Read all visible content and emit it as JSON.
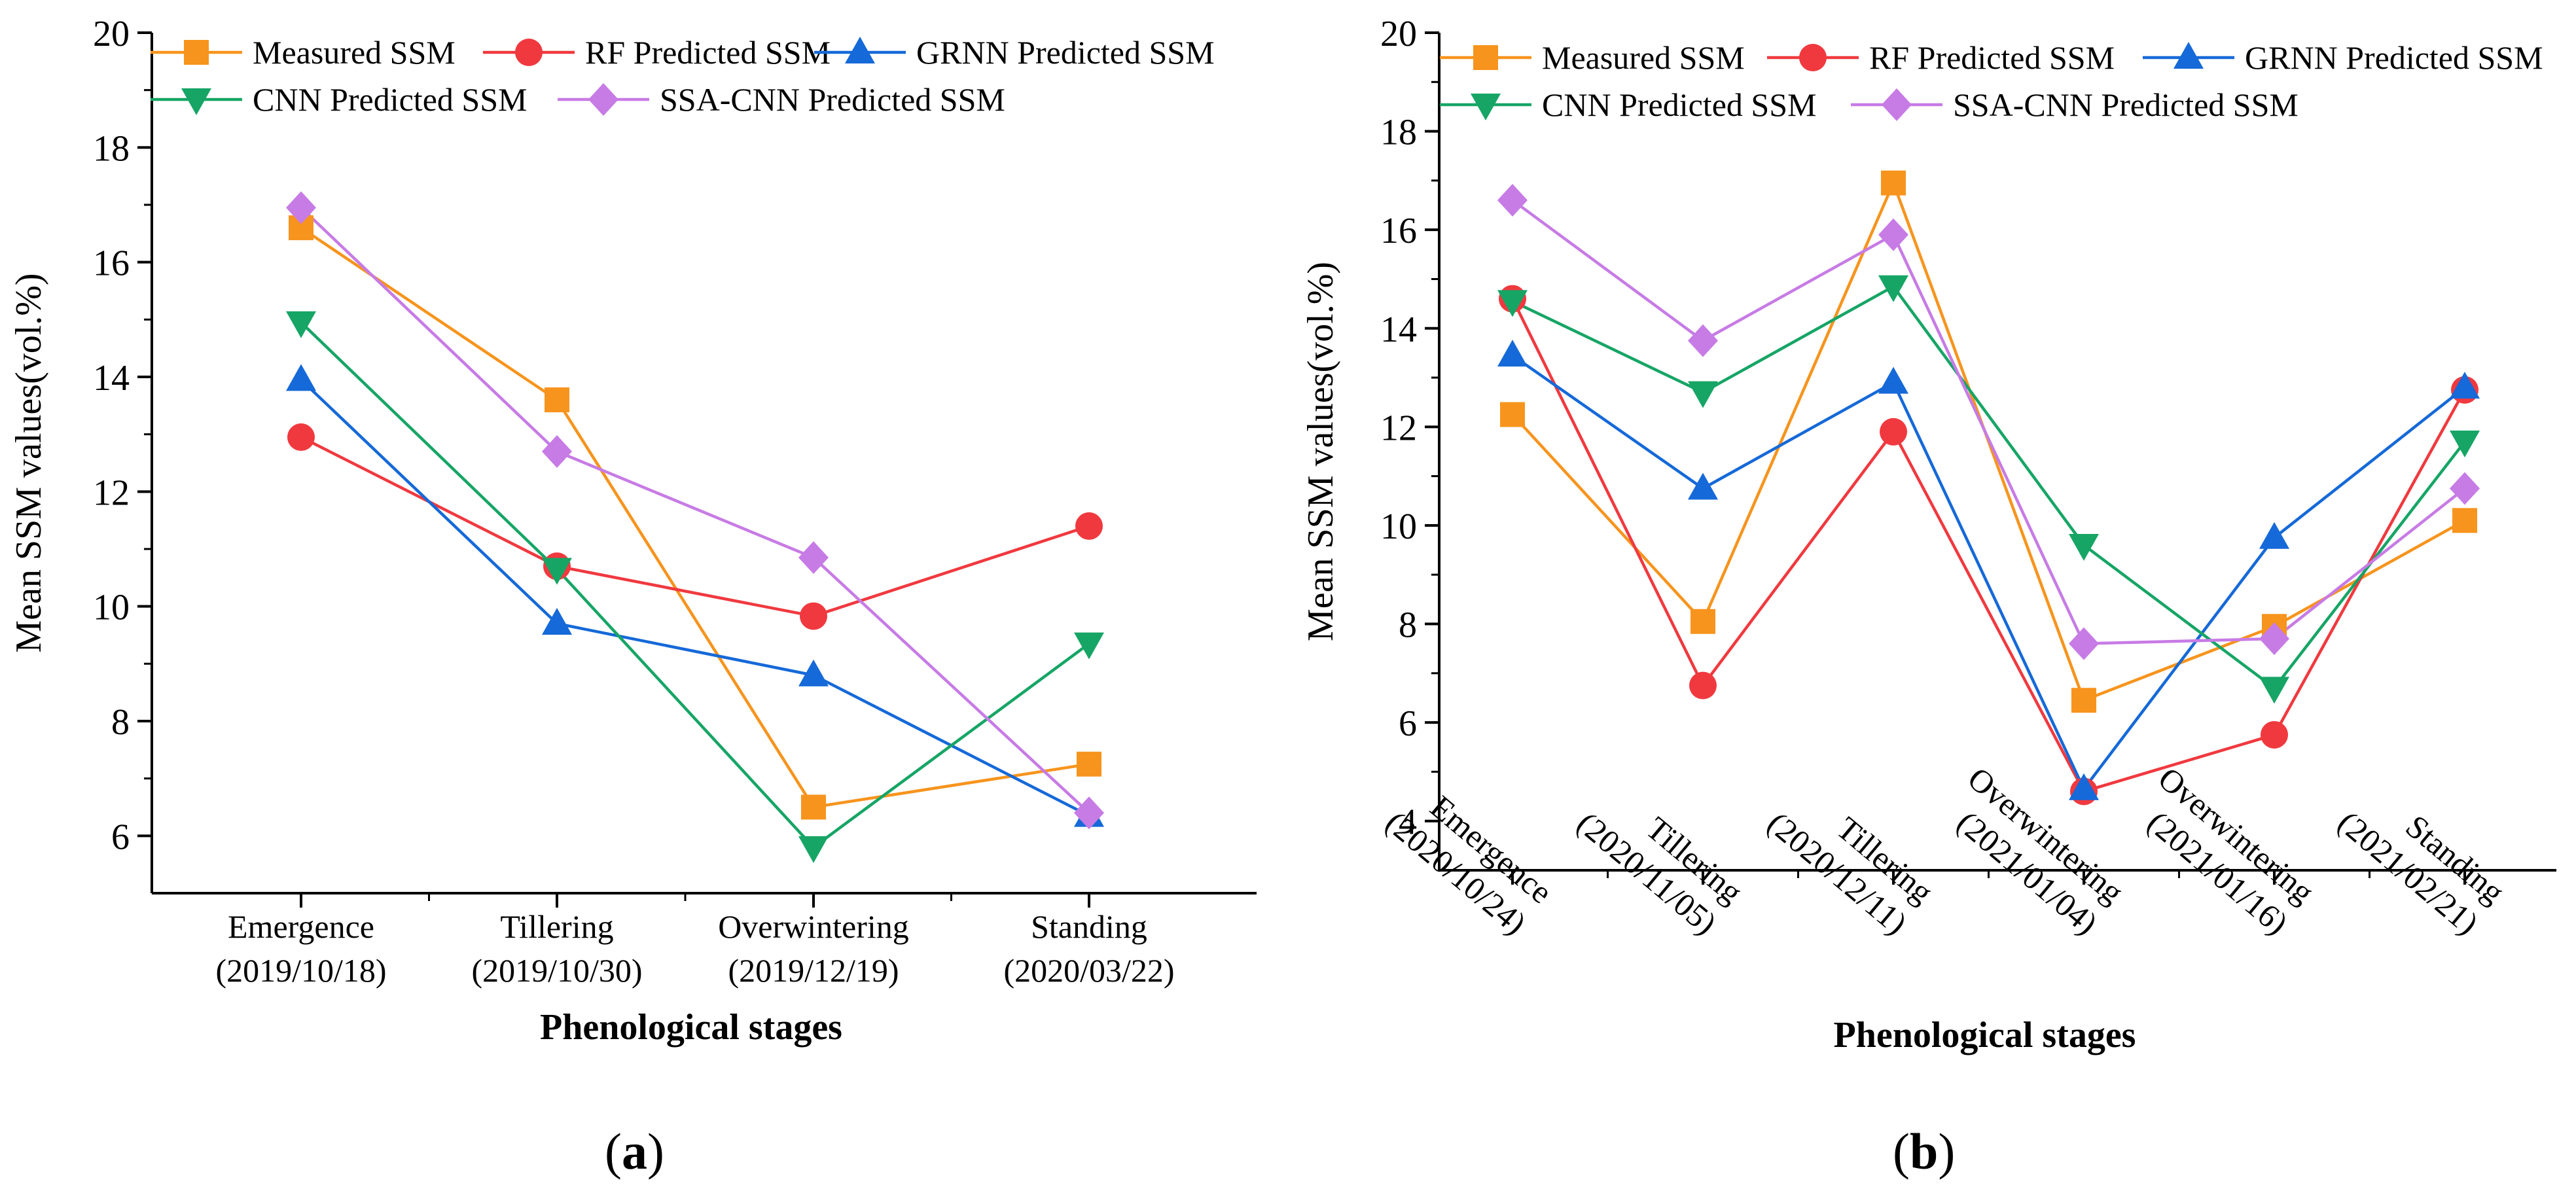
{
  "colors": {
    "measured": "#f7941d",
    "rf": "#f0393f",
    "grnn": "#1569d8",
    "cnn": "#16a565",
    "ssa_cnn": "#c77be5"
  },
  "chart_data": [
    {
      "type": "line",
      "panel": "a",
      "xlabel": "Phenological stages",
      "ylabel": "Mean SSM values(vol.%)",
      "ylim": [
        5,
        20
      ],
      "yticks": [
        6,
        8,
        10,
        12,
        14,
        16,
        18,
        20
      ],
      "legend_position": "top",
      "categories": [
        {
          "stage": "Emergence",
          "date": "(2019/10/18)"
        },
        {
          "stage": "Tillering",
          "date": "(2019/10/30)"
        },
        {
          "stage": "Overwintering",
          "date": "(2019/12/19)"
        },
        {
          "stage": "Standing",
          "date": "(2020/03/22)"
        }
      ],
      "series": [
        {
          "name": "Measured SSM",
          "marker": "square",
          "color": "#f7941d",
          "values": [
            16.6,
            13.6,
            6.5,
            7.25
          ]
        },
        {
          "name": "RF Predicted SSM",
          "marker": "circle",
          "color": "#f0393f",
          "values": [
            12.95,
            10.7,
            9.83,
            11.4
          ]
        },
        {
          "name": "GRNN Predicted SSM",
          "marker": "triangle-up",
          "color": "#1569d8",
          "values": [
            13.95,
            9.7,
            8.8,
            6.35
          ]
        },
        {
          "name": "CNN Predicted SSM",
          "marker": "triangle-down",
          "color": "#16a565",
          "values": [
            14.95,
            10.65,
            5.8,
            9.35
          ]
        },
        {
          "name": "SSA-CNN Predicted SSM",
          "marker": "diamond",
          "color": "#c77be5",
          "values": [
            16.95,
            12.7,
            10.85,
            6.4
          ]
        }
      ]
    },
    {
      "type": "line",
      "panel": "b",
      "xlabel": "Phenological stages",
      "ylabel": "Mean SSM values(vol.%)",
      "ylim": [
        3,
        20
      ],
      "yticks": [
        4,
        6,
        8,
        10,
        12,
        14,
        16,
        18,
        20
      ],
      "legend_position": "top",
      "categories": [
        {
          "stage": "Emergence",
          "date": "(2020/10/24)"
        },
        {
          "stage": "Tillering",
          "date": "(2020/11/05)"
        },
        {
          "stage": "Tillering",
          "date": "(2020/12/11)"
        },
        {
          "stage": "Overwintering",
          "date": "(2021/01/04)"
        },
        {
          "stage": "Overwintering",
          "date": "(2021/01/16)"
        },
        {
          "stage": "Standing",
          "date": "(2021/02/21)"
        }
      ],
      "series": [
        {
          "name": "Measured SSM",
          "marker": "square",
          "color": "#f7941d",
          "values": [
            12.25,
            8.05,
            16.95,
            6.45,
            7.95,
            10.1
          ]
        },
        {
          "name": "RF Predicted SSM",
          "marker": "circle",
          "color": "#f0393f",
          "values": [
            14.6,
            6.75,
            11.9,
            4.6,
            5.75,
            12.75
          ]
        },
        {
          "name": "GRNN Predicted SSM",
          "marker": "triangle-up",
          "color": "#1569d8",
          "values": [
            13.45,
            10.75,
            12.9,
            4.65,
            9.75,
            12.8
          ]
        },
        {
          "name": "CNN Predicted SSM",
          "marker": "triangle-down",
          "color": "#16a565",
          "values": [
            14.55,
            12.7,
            14.85,
            9.6,
            6.7,
            11.7
          ]
        },
        {
          "name": "SSA-CNN Predicted SSM",
          "marker": "diamond",
          "color": "#c77be5",
          "values": [
            16.6,
            13.75,
            15.9,
            7.6,
            7.7,
            10.75
          ]
        }
      ]
    }
  ],
  "panel_labels": [
    "a",
    "b"
  ]
}
